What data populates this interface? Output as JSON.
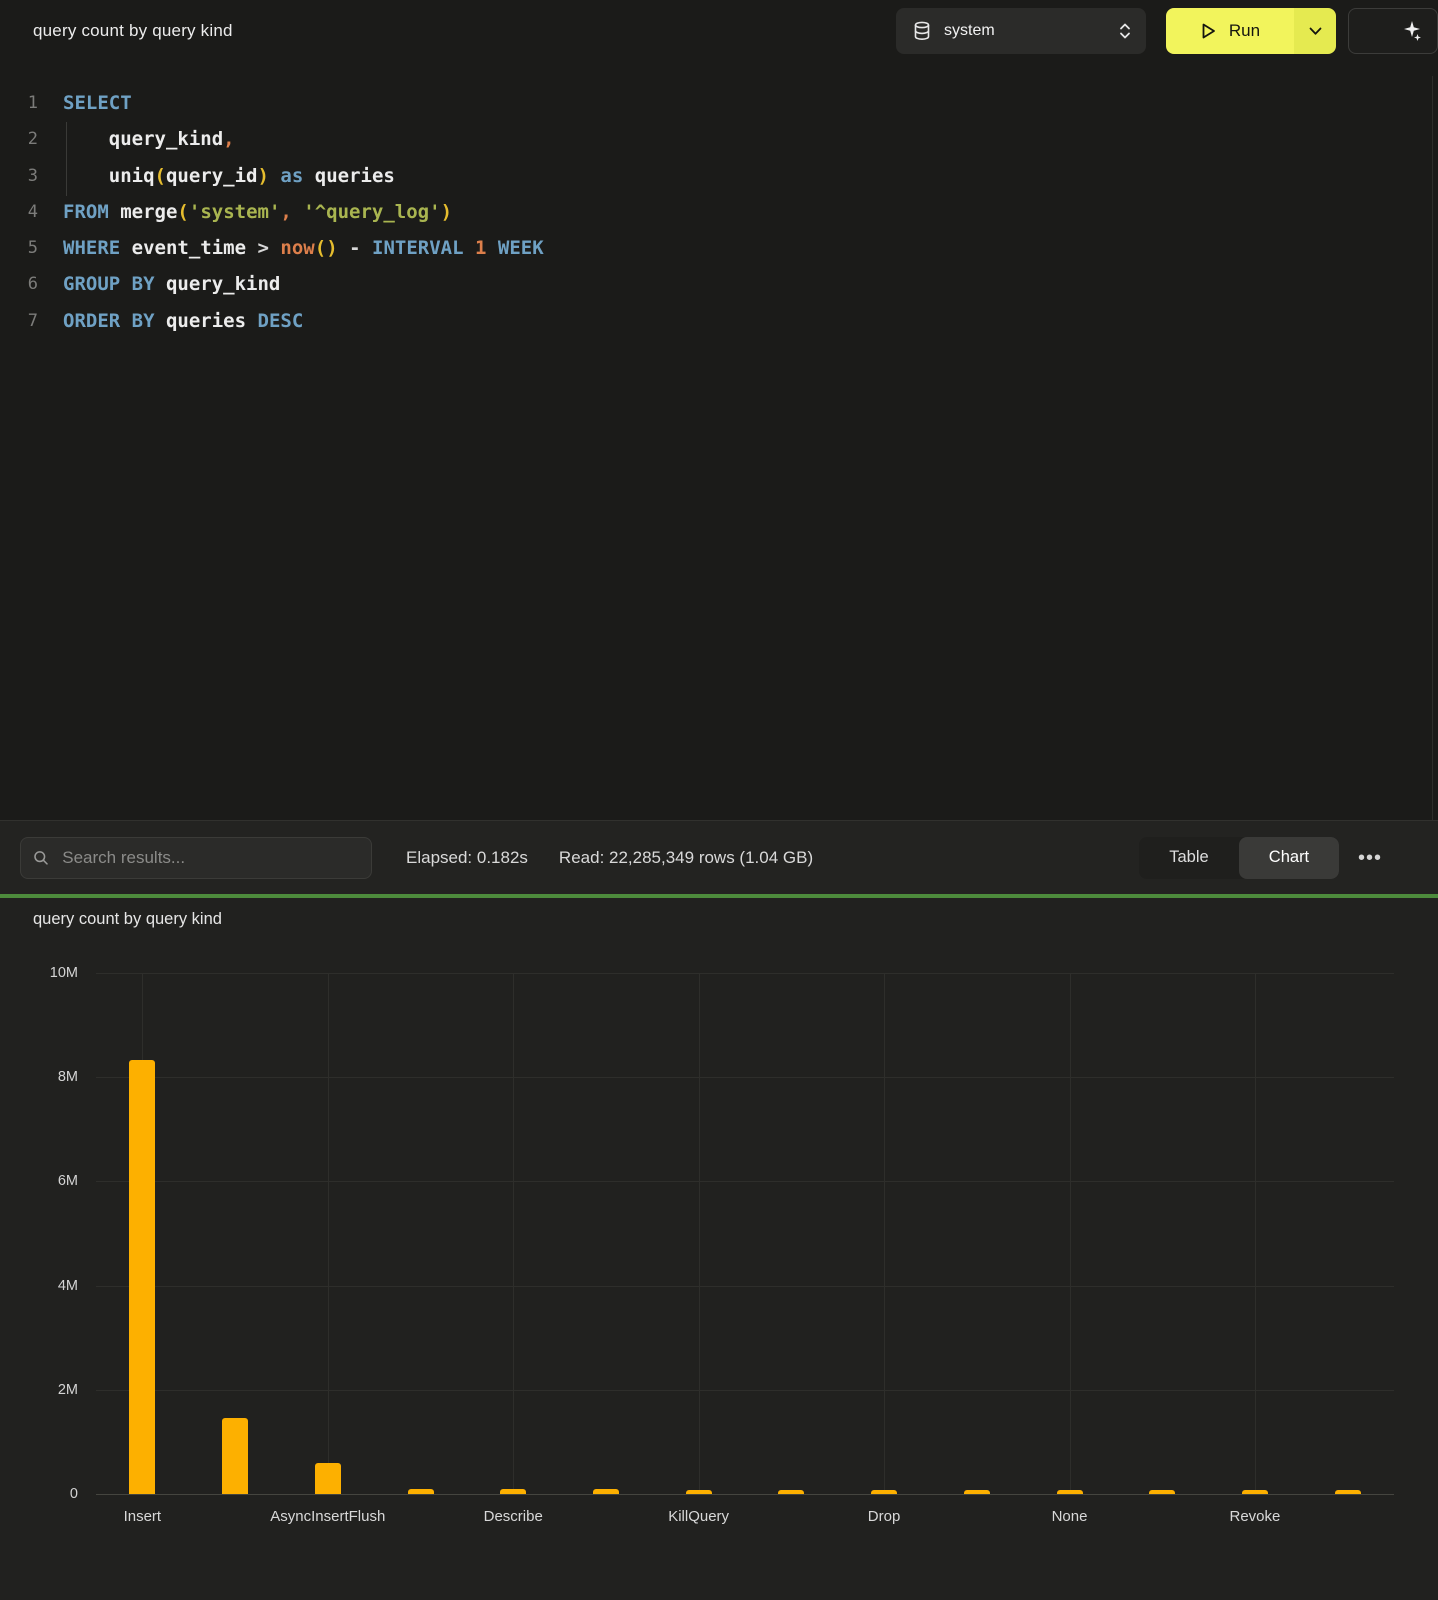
{
  "topbar": {
    "title": "query count by query kind",
    "database_selector": {
      "value": "system"
    },
    "run_button": {
      "label": "Run"
    }
  },
  "editor": {
    "lines": [
      {
        "n": "1",
        "tokens": [
          {
            "t": "SELECT",
            "c": "kw"
          }
        ]
      },
      {
        "n": "2",
        "tokens": [
          {
            "t": "    ",
            "c": "op"
          },
          {
            "t": "query_kind",
            "c": "id"
          },
          {
            "t": ",",
            "c": "orange"
          }
        ]
      },
      {
        "n": "3",
        "tokens": [
          {
            "t": "    ",
            "c": "op"
          },
          {
            "t": "uniq",
            "c": "id"
          },
          {
            "t": "(",
            "c": "paren"
          },
          {
            "t": "query_id",
            "c": "id"
          },
          {
            "t": ")",
            "c": "paren"
          },
          {
            "t": " ",
            "c": "op"
          },
          {
            "t": "as",
            "c": "kw"
          },
          {
            "t": " ",
            "c": "op"
          },
          {
            "t": "queries",
            "c": "id"
          }
        ]
      },
      {
        "n": "4",
        "tokens": [
          {
            "t": "FROM",
            "c": "kw"
          },
          {
            "t": " ",
            "c": "op"
          },
          {
            "t": "merge",
            "c": "id"
          },
          {
            "t": "(",
            "c": "paren"
          },
          {
            "t": "'system'",
            "c": "str"
          },
          {
            "t": ",",
            "c": "orange"
          },
          {
            "t": " ",
            "c": "op"
          },
          {
            "t": "'^query_log'",
            "c": "str"
          },
          {
            "t": ")",
            "c": "paren"
          }
        ]
      },
      {
        "n": "5",
        "tokens": [
          {
            "t": "WHERE",
            "c": "kw"
          },
          {
            "t": " ",
            "c": "op"
          },
          {
            "t": "event_time",
            "c": "id"
          },
          {
            "t": " ",
            "c": "op"
          },
          {
            "t": ">",
            "c": "op"
          },
          {
            "t": " ",
            "c": "op"
          },
          {
            "t": "now",
            "c": "orange"
          },
          {
            "t": "(",
            "c": "paren"
          },
          {
            "t": ")",
            "c": "paren"
          },
          {
            "t": " ",
            "c": "op"
          },
          {
            "t": "-",
            "c": "op"
          },
          {
            "t": " ",
            "c": "op"
          },
          {
            "t": "INTERVAL",
            "c": "kw"
          },
          {
            "t": " ",
            "c": "op"
          },
          {
            "t": "1",
            "c": "orange"
          },
          {
            "t": " ",
            "c": "op"
          },
          {
            "t": "WEEK",
            "c": "kw"
          }
        ]
      },
      {
        "n": "6",
        "tokens": [
          {
            "t": "GROUP BY",
            "c": "kw"
          },
          {
            "t": " ",
            "c": "op"
          },
          {
            "t": "query_kind",
            "c": "id"
          }
        ]
      },
      {
        "n": "7",
        "tokens": [
          {
            "t": "ORDER BY",
            "c": "kw"
          },
          {
            "t": " ",
            "c": "op"
          },
          {
            "t": "queries",
            "c": "id"
          },
          {
            "t": " ",
            "c": "op"
          },
          {
            "t": "DESC",
            "c": "kw"
          }
        ]
      }
    ]
  },
  "results_toolbar": {
    "search_placeholder": "Search results...",
    "elapsed": "Elapsed: 0.182s",
    "read": "Read: 22,285,349 rows (1.04 GB)",
    "view_toggle": {
      "options": [
        "Table",
        "Chart"
      ],
      "active": "Chart"
    },
    "menu_glyph": "•••"
  },
  "colors": {
    "accent_run_yellow": "#f2f45c",
    "splitter_green": "#4d8b3c",
    "bar_orange": "#fdb000"
  },
  "chart_data": {
    "type": "bar",
    "title": "query count by query kind",
    "categories": [
      "Insert",
      "",
      "AsyncInsertFlush",
      "",
      "Describe",
      "",
      "KillQuery",
      "",
      "Drop",
      "",
      "None",
      "",
      "Revoke",
      ""
    ],
    "values": [
      8330000,
      1460000,
      600000,
      100000,
      95000,
      90000,
      85000,
      80000,
      78000,
      75000,
      72000,
      70000,
      68000,
      65000
    ],
    "xlabel": "",
    "ylabel": "",
    "ylim": [
      0,
      10000000
    ],
    "yticks": [
      "10M",
      "8M",
      "6M",
      "4M",
      "2M",
      "0"
    ],
    "grid": true,
    "legend": "none",
    "bar_color": "#fdb000"
  }
}
